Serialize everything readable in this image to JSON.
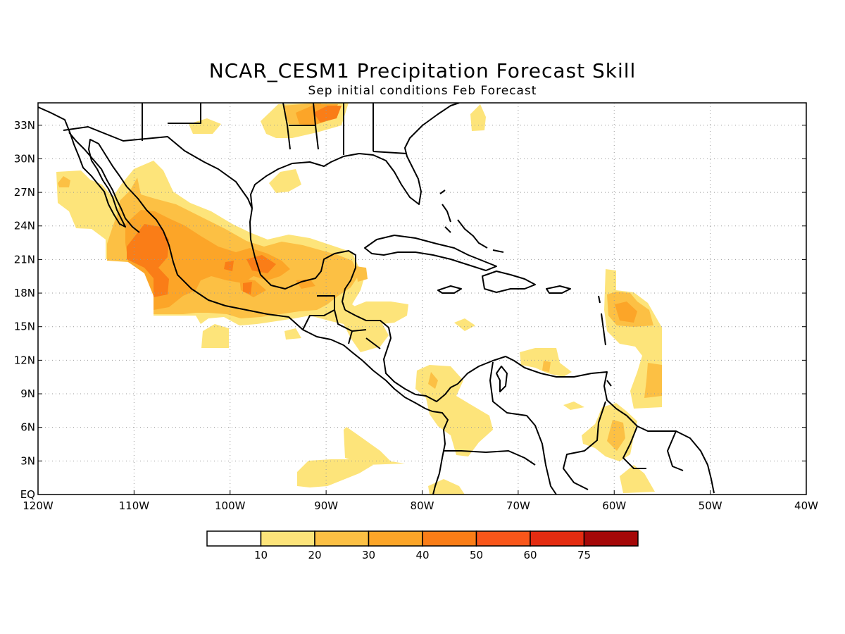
{
  "title": "NCAR_CESM1 Precipitation Forecast Skill",
  "subtitle": "Sep initial conditions  Feb Forecast",
  "map": {
    "projection": "lat-lon",
    "lon_range": [
      -120,
      -40
    ],
    "lat_range": [
      0,
      35
    ],
    "grid": "dotted",
    "lon_tick_labels": [
      "120W",
      "110W",
      "100W",
      "90W",
      "80W",
      "70W",
      "60W",
      "50W",
      "40W"
    ],
    "lat_tick_labels": [
      "EQ",
      "3N",
      "6N",
      "9N",
      "12N",
      "15N",
      "18N",
      "21N",
      "24N",
      "27N",
      "30N",
      "33N"
    ]
  },
  "colorbar": {
    "colors": [
      "#ffffff",
      "#fde47a",
      "#fcc044",
      "#fca528",
      "#fa7d17",
      "#f9561a",
      "#e42c11",
      "#a50808"
    ],
    "labels": [
      "10",
      "20",
      "30",
      "40",
      "50",
      "60",
      "75"
    ]
  }
}
